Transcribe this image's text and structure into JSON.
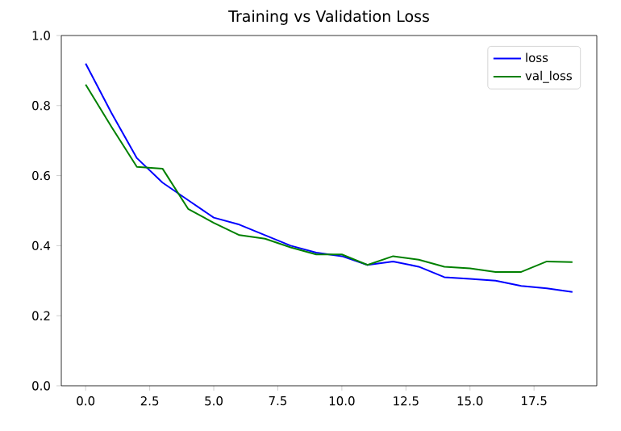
{
  "chart_data": {
    "type": "line",
    "title": "Training vs Validation Loss",
    "x": [
      0,
      1,
      2,
      3,
      4,
      5,
      6,
      7,
      8,
      9,
      10,
      11,
      12,
      13,
      14,
      15,
      16,
      17,
      18,
      19
    ],
    "series": [
      {
        "name": "loss",
        "color": "#0000ff",
        "values": [
          0.92,
          0.78,
          0.65,
          0.58,
          0.53,
          0.48,
          0.46,
          0.43,
          0.4,
          0.38,
          0.37,
          0.345,
          0.355,
          0.34,
          0.31,
          0.305,
          0.3,
          0.285,
          0.278,
          0.268
        ]
      },
      {
        "name": "val_loss",
        "color": "#008000",
        "values": [
          0.86,
          0.74,
          0.625,
          0.62,
          0.505,
          0.465,
          0.43,
          0.42,
          0.395,
          0.375,
          0.375,
          0.345,
          0.37,
          0.36,
          0.34,
          0.335,
          0.325,
          0.325,
          0.355,
          0.353
        ]
      }
    ],
    "xlim": [
      -0.95,
      19.95
    ],
    "ylim": [
      0,
      1
    ],
    "xticks": [
      {
        "value": 0,
        "label": "0.0"
      },
      {
        "value": 2.5,
        "label": "2.5"
      },
      {
        "value": 5,
        "label": "5.0"
      },
      {
        "value": 7.5,
        "label": "7.5"
      },
      {
        "value": 10,
        "label": "10.0"
      },
      {
        "value": 12.5,
        "label": "12.5"
      },
      {
        "value": 15,
        "label": "15.0"
      },
      {
        "value": 17.5,
        "label": "17.5"
      }
    ],
    "yticks": [
      {
        "value": 0,
        "label": "0.0"
      },
      {
        "value": 0.2,
        "label": "0.2"
      },
      {
        "value": 0.4,
        "label": "0.4"
      },
      {
        "value": 0.6,
        "label": "0.6"
      },
      {
        "value": 0.8,
        "label": "0.8"
      },
      {
        "value": 1,
        "label": "1.0"
      }
    ],
    "legend": "top right",
    "grid": false,
    "marker": "none",
    "line_style": "solid"
  }
}
